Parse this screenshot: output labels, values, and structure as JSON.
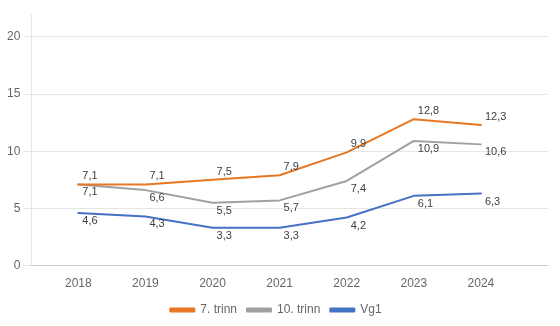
{
  "chart_data": {
    "type": "line",
    "x": [
      2018,
      2019,
      2020,
      2021,
      2022,
      2023,
      2024
    ],
    "series": [
      {
        "name": "7. trinn",
        "color": "#E87722",
        "values": [
          7.1,
          7.1,
          7.5,
          7.9,
          9.9,
          12.8,
          12.3
        ],
        "value_labels": [
          "7,1",
          "7,1",
          "7,5",
          "7,9",
          "9,9",
          "12,8",
          "12,3"
        ]
      },
      {
        "name": "10. trinn",
        "color": "#A0A0A0",
        "values": [
          7.1,
          6.6,
          5.5,
          5.7,
          7.4,
          10.9,
          10.6
        ],
        "value_labels": [
          "7,1",
          "6,6",
          "5,5",
          "5,7",
          "7,4",
          "10,9",
          "10,6"
        ]
      },
      {
        "name": "Vg1",
        "color": "#4472C4",
        "values": [
          4.6,
          4.3,
          3.3,
          3.3,
          4.2,
          6.1,
          6.3
        ],
        "value_labels": [
          "4,6",
          "4,3",
          "3,3",
          "3,3",
          "4,2",
          "6,1",
          "6,3"
        ]
      }
    ],
    "xlim": [
      2017.3,
      2025.0
    ],
    "xticks": [
      2018,
      2019,
      2020,
      2021,
      2022,
      2023,
      2024
    ],
    "ylim": [
      0,
      22
    ],
    "yticks": [
      0,
      5,
      10,
      15,
      20
    ],
    "grid": true,
    "legend": "bottom",
    "data_labels": true
  }
}
